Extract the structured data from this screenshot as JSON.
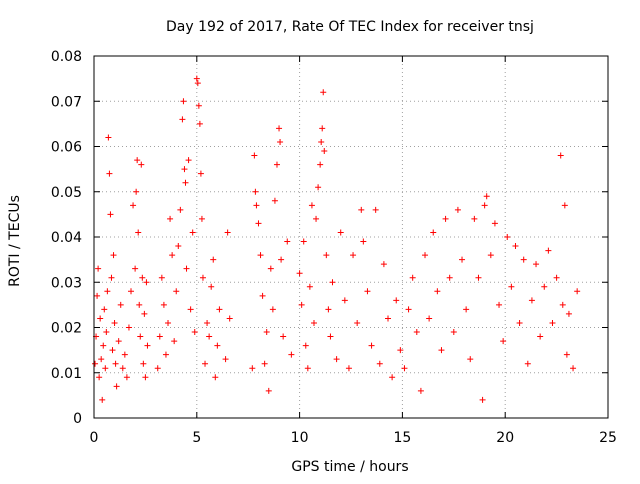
{
  "chart_data": {
    "type": "scatter",
    "title": "Day 192 of 2017, Rate Of TEC Index for receiver tnsj",
    "xlabel": "GPS time / hours",
    "ylabel": "ROTI / TECUs",
    "xlim": [
      0,
      25
    ],
    "ylim": [
      0,
      0.08
    ],
    "xticks": [
      0,
      5,
      10,
      15,
      20,
      25
    ],
    "xtick_labels": [
      "0",
      "5",
      "10",
      "15",
      "20",
      "25"
    ],
    "yticks": [
      0,
      0.01,
      0.02,
      0.03,
      0.04,
      0.05,
      0.06,
      0.07,
      0.08
    ],
    "ytick_labels": [
      "0",
      "0.01",
      "0.02",
      "0.03",
      "0.04",
      "0.05",
      "0.06",
      "0.07",
      "0.08"
    ],
    "grid": true,
    "marker": "+",
    "series": [
      {
        "name": "ROTI",
        "color": "#ff0000",
        "points": [
          [
            0.05,
            0.012
          ],
          [
            0.1,
            0.018
          ],
          [
            0.15,
            0.027
          ],
          [
            0.2,
            0.033
          ],
          [
            0.25,
            0.009
          ],
          [
            0.3,
            0.022
          ],
          [
            0.35,
            0.013
          ],
          [
            0.4,
            0.004
          ],
          [
            0.45,
            0.016
          ],
          [
            0.5,
            0.024
          ],
          [
            0.55,
            0.011
          ],
          [
            0.6,
            0.019
          ],
          [
            0.65,
            0.028
          ],
          [
            0.7,
            0.062
          ],
          [
            0.75,
            0.054
          ],
          [
            0.8,
            0.045
          ],
          [
            0.85,
            0.031
          ],
          [
            0.9,
            0.015
          ],
          [
            0.95,
            0.036
          ],
          [
            1.0,
            0.021
          ],
          [
            1.05,
            0.012
          ],
          [
            1.1,
            0.007
          ],
          [
            1.2,
            0.017
          ],
          [
            1.3,
            0.025
          ],
          [
            1.4,
            0.011
          ],
          [
            1.5,
            0.014
          ],
          [
            1.6,
            0.009
          ],
          [
            1.7,
            0.02
          ],
          [
            1.8,
            0.028
          ],
          [
            1.9,
            0.047
          ],
          [
            2.0,
            0.033
          ],
          [
            2.05,
            0.05
          ],
          [
            2.1,
            0.057
          ],
          [
            2.15,
            0.041
          ],
          [
            2.2,
            0.025
          ],
          [
            2.25,
            0.018
          ],
          [
            2.3,
            0.056
          ],
          [
            2.35,
            0.031
          ],
          [
            2.4,
            0.012
          ],
          [
            2.45,
            0.023
          ],
          [
            2.5,
            0.009
          ],
          [
            2.55,
            0.03
          ],
          [
            2.6,
            0.016
          ],
          [
            3.1,
            0.011
          ],
          [
            3.2,
            0.018
          ],
          [
            3.3,
            0.031
          ],
          [
            3.4,
            0.025
          ],
          [
            3.5,
            0.014
          ],
          [
            3.6,
            0.021
          ],
          [
            3.7,
            0.044
          ],
          [
            3.8,
            0.036
          ],
          [
            3.9,
            0.017
          ],
          [
            4.0,
            0.028
          ],
          [
            4.1,
            0.038
          ],
          [
            4.2,
            0.046
          ],
          [
            4.3,
            0.066
          ],
          [
            4.35,
            0.07
          ],
          [
            4.4,
            0.055
          ],
          [
            4.45,
            0.052
          ],
          [
            4.5,
            0.033
          ],
          [
            4.6,
            0.057
          ],
          [
            4.7,
            0.024
          ],
          [
            4.8,
            0.041
          ],
          [
            4.9,
            0.019
          ],
          [
            5.0,
            0.075
          ],
          [
            5.05,
            0.074
          ],
          [
            5.1,
            0.069
          ],
          [
            5.15,
            0.065
          ],
          [
            5.2,
            0.054
          ],
          [
            5.25,
            0.044
          ],
          [
            5.3,
            0.031
          ],
          [
            5.4,
            0.012
          ],
          [
            5.5,
            0.021
          ],
          [
            5.6,
            0.018
          ],
          [
            5.7,
            0.029
          ],
          [
            5.8,
            0.035
          ],
          [
            5.9,
            0.009
          ],
          [
            6.0,
            0.016
          ],
          [
            6.1,
            0.024
          ],
          [
            6.4,
            0.013
          ],
          [
            6.5,
            0.041
          ],
          [
            6.6,
            0.022
          ],
          [
            7.7,
            0.011
          ],
          [
            7.8,
            0.058
          ],
          [
            7.85,
            0.05
          ],
          [
            7.9,
            0.047
          ],
          [
            8.0,
            0.043
          ],
          [
            8.1,
            0.036
          ],
          [
            8.2,
            0.027
          ],
          [
            8.3,
            0.012
          ],
          [
            8.4,
            0.019
          ],
          [
            8.5,
            0.006
          ],
          [
            8.6,
            0.033
          ],
          [
            8.7,
            0.024
          ],
          [
            8.8,
            0.048
          ],
          [
            8.9,
            0.056
          ],
          [
            9.0,
            0.064
          ],
          [
            9.05,
            0.061
          ],
          [
            9.1,
            0.035
          ],
          [
            9.2,
            0.018
          ],
          [
            9.4,
            0.039
          ],
          [
            9.6,
            0.014
          ],
          [
            10.0,
            0.032
          ],
          [
            10.1,
            0.025
          ],
          [
            10.2,
            0.039
          ],
          [
            10.3,
            0.016
          ],
          [
            10.4,
            0.011
          ],
          [
            10.5,
            0.029
          ],
          [
            10.6,
            0.047
          ],
          [
            10.7,
            0.021
          ],
          [
            10.8,
            0.044
          ],
          [
            10.9,
            0.051
          ],
          [
            11.0,
            0.056
          ],
          [
            11.05,
            0.061
          ],
          [
            11.1,
            0.064
          ],
          [
            11.15,
            0.072
          ],
          [
            11.2,
            0.059
          ],
          [
            11.3,
            0.036
          ],
          [
            11.4,
            0.024
          ],
          [
            11.5,
            0.018
          ],
          [
            11.6,
            0.03
          ],
          [
            11.8,
            0.013
          ],
          [
            12.0,
            0.041
          ],
          [
            12.2,
            0.026
          ],
          [
            12.4,
            0.011
          ],
          [
            12.6,
            0.036
          ],
          [
            12.8,
            0.021
          ],
          [
            13.0,
            0.046
          ],
          [
            13.1,
            0.039
          ],
          [
            13.3,
            0.028
          ],
          [
            13.5,
            0.016
          ],
          [
            13.7,
            0.046
          ],
          [
            13.9,
            0.012
          ],
          [
            14.1,
            0.034
          ],
          [
            14.3,
            0.022
          ],
          [
            14.5,
            0.009
          ],
          [
            14.7,
            0.026
          ],
          [
            14.9,
            0.015
          ],
          [
            15.1,
            0.011
          ],
          [
            15.3,
            0.024
          ],
          [
            15.5,
            0.031
          ],
          [
            15.7,
            0.019
          ],
          [
            15.9,
            0.006
          ],
          [
            16.1,
            0.036
          ],
          [
            16.3,
            0.022
          ],
          [
            16.5,
            0.041
          ],
          [
            16.7,
            0.028
          ],
          [
            16.9,
            0.015
          ],
          [
            17.1,
            0.044
          ],
          [
            17.3,
            0.031
          ],
          [
            17.5,
            0.019
          ],
          [
            17.7,
            0.046
          ],
          [
            17.9,
            0.035
          ],
          [
            18.1,
            0.024
          ],
          [
            18.3,
            0.013
          ],
          [
            18.5,
            0.044
          ],
          [
            18.7,
            0.031
          ],
          [
            18.9,
            0.004
          ],
          [
            19.0,
            0.047
          ],
          [
            19.1,
            0.049
          ],
          [
            19.3,
            0.036
          ],
          [
            19.5,
            0.043
          ],
          [
            19.7,
            0.025
          ],
          [
            19.9,
            0.017
          ],
          [
            20.1,
            0.04
          ],
          [
            20.3,
            0.029
          ],
          [
            20.5,
            0.038
          ],
          [
            20.7,
            0.021
          ],
          [
            20.9,
            0.035
          ],
          [
            21.1,
            0.012
          ],
          [
            21.3,
            0.026
          ],
          [
            21.5,
            0.034
          ],
          [
            21.7,
            0.018
          ],
          [
            21.9,
            0.029
          ],
          [
            22.1,
            0.037
          ],
          [
            22.3,
            0.021
          ],
          [
            22.5,
            0.031
          ],
          [
            22.7,
            0.058
          ],
          [
            22.8,
            0.025
          ],
          [
            22.9,
            0.047
          ],
          [
            23.0,
            0.014
          ],
          [
            23.1,
            0.023
          ],
          [
            23.3,
            0.011
          ],
          [
            23.5,
            0.028
          ]
        ]
      }
    ]
  }
}
